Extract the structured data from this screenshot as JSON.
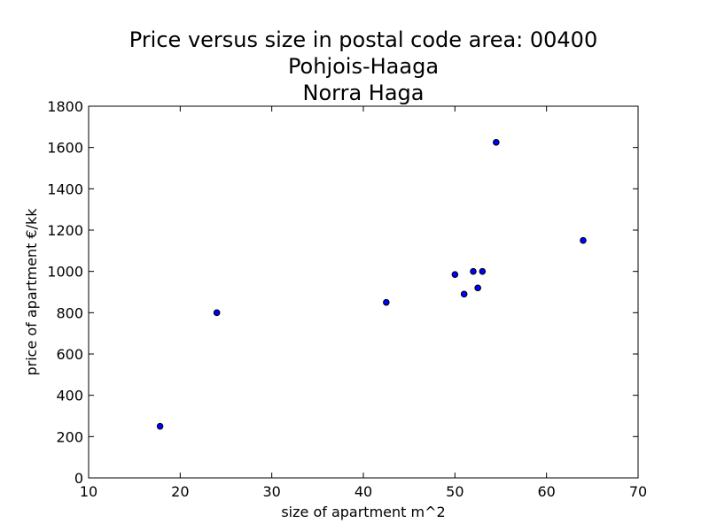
{
  "chart_data": {
    "type": "scatter",
    "title_lines": [
      "Price versus size in postal code area: 00400",
      "Pohjois-Haaga",
      "Norra Haga"
    ],
    "xlabel": "size of apartment m^2",
    "ylabel": "price of apartment €/kk",
    "xlim": [
      10,
      70
    ],
    "ylim": [
      0,
      1800
    ],
    "xticks": [
      10,
      20,
      30,
      40,
      50,
      60,
      70
    ],
    "yticks": [
      0,
      200,
      400,
      600,
      800,
      1000,
      1200,
      1400,
      1600,
      1800
    ],
    "grid": false,
    "legend": "none",
    "marker_color": "#0000ff",
    "marker_edge_color": "#000000",
    "points": [
      {
        "x": 17.8,
        "y": 250
      },
      {
        "x": 24.0,
        "y": 800
      },
      {
        "x": 42.5,
        "y": 850
      },
      {
        "x": 50.0,
        "y": 985
      },
      {
        "x": 51.0,
        "y": 890
      },
      {
        "x": 52.0,
        "y": 1000
      },
      {
        "x": 52.5,
        "y": 920
      },
      {
        "x": 53.0,
        "y": 1000
      },
      {
        "x": 54.5,
        "y": 1625
      },
      {
        "x": 64.0,
        "y": 1150
      }
    ]
  }
}
